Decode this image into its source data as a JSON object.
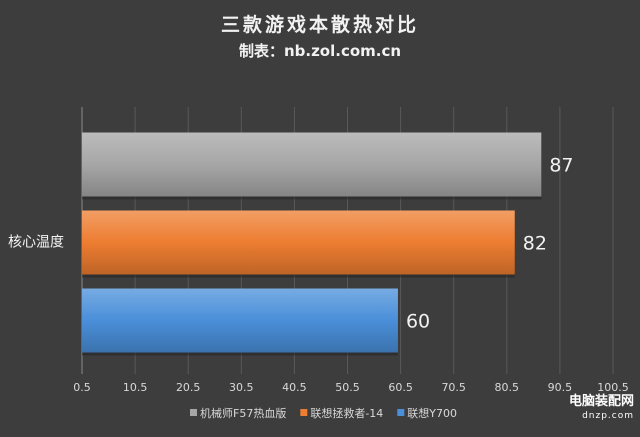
{
  "header": {
    "title": "三款游戏本散热对比",
    "subtitle": "制表：nb.zol.com.cn"
  },
  "watermark": {
    "line1": "电脑装配网",
    "line2": "dnzp.com"
  },
  "chart_data": {
    "type": "bar",
    "orientation": "horizontal",
    "categories": [
      "核心温度"
    ],
    "series": [
      {
        "name": "机械师F57热血版",
        "values": [
          87
        ],
        "color": "#a6a6a6"
      },
      {
        "name": "联想拯救者-14",
        "values": [
          82
        ],
        "color": "#ed7d31"
      },
      {
        "name": "联想Y700",
        "values": [
          60
        ],
        "color": "#4a8fd9"
      }
    ],
    "xlim": [
      0.5,
      100.5
    ],
    "xticks": [
      "0.5",
      "10.5",
      "20.5",
      "30.5",
      "40.5",
      "50.5",
      "60.5",
      "70.5",
      "80.5",
      "90.5",
      "100.5"
    ],
    "title": "三款游戏本散热对比",
    "xlabel": "",
    "ylabel": "",
    "grid": true,
    "legend": "bottom",
    "data_labels": true
  }
}
